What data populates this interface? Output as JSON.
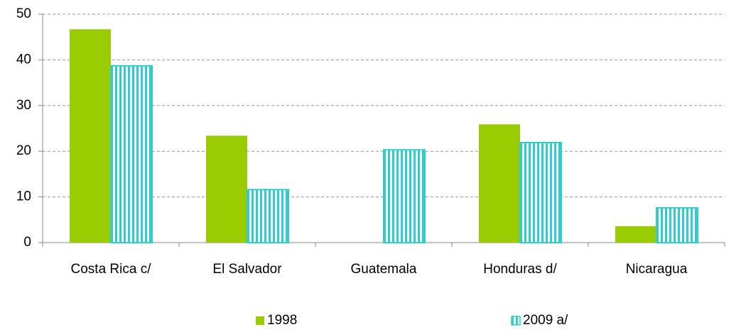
{
  "chart_data": {
    "type": "bar",
    "categories": [
      "Costa Rica c/",
      "El Salvador",
      "Guatemala",
      "Honduras d/",
      "Nicaragua"
    ],
    "series": [
      {
        "name": "1998",
        "color": "#99cc00",
        "values": [
          46.7,
          23.4,
          null,
          25.9,
          3.6
        ]
      },
      {
        "name": "2009 a/",
        "color": "#33cccc",
        "values": [
          38.7,
          11.6,
          20.3,
          21.9,
          7.6
        ]
      }
    ],
    "ylim": [
      0,
      50
    ],
    "yticks": [
      0,
      10,
      20,
      30,
      40,
      50
    ],
    "grid": true,
    "legend": "bottom"
  }
}
